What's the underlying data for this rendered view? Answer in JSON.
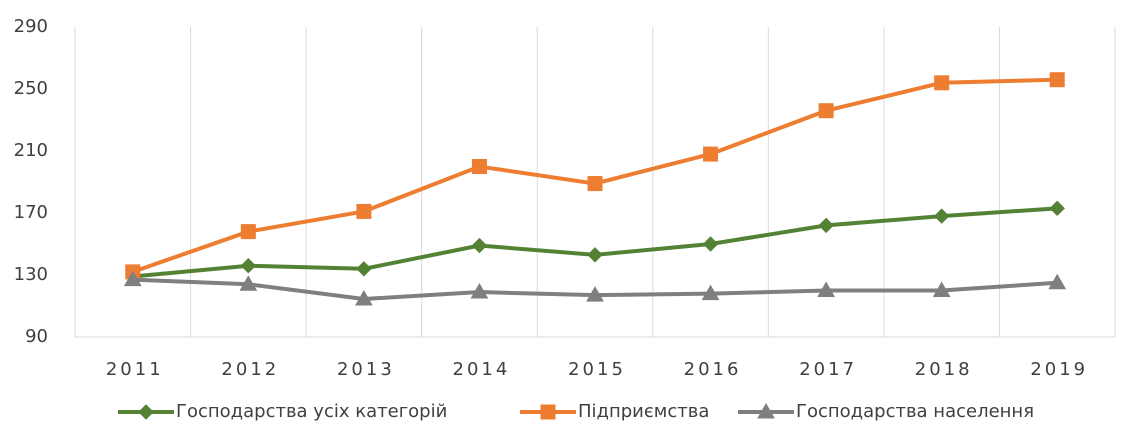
{
  "chart_data": {
    "type": "line",
    "categories": [
      "2011",
      "2012",
      "2013",
      "2014",
      "2015",
      "2016",
      "2017",
      "2018",
      "2019"
    ],
    "series": [
      {
        "name": "Господарства усіх категорій",
        "color": "#548235",
        "marker": "diamond",
        "values": [
          129,
          136,
          134,
          149,
          143,
          150,
          162,
          168,
          173
        ]
      },
      {
        "name": "Підприємства",
        "color": "#ed7d31",
        "marker": "square",
        "values": [
          132,
          158,
          171,
          200,
          189,
          208,
          236,
          254,
          256
        ]
      },
      {
        "name": "Господарства населення",
        "color": "#7f7f7f",
        "marker": "triangle",
        "values": [
          127,
          124,
          114.5,
          119,
          117,
          118,
          120,
          120,
          125
        ]
      }
    ],
    "ylim": [
      90,
      290
    ],
    "yticks": [
      90,
      130,
      170,
      210,
      250,
      290
    ],
    "grid": true,
    "legend": "bottom"
  }
}
